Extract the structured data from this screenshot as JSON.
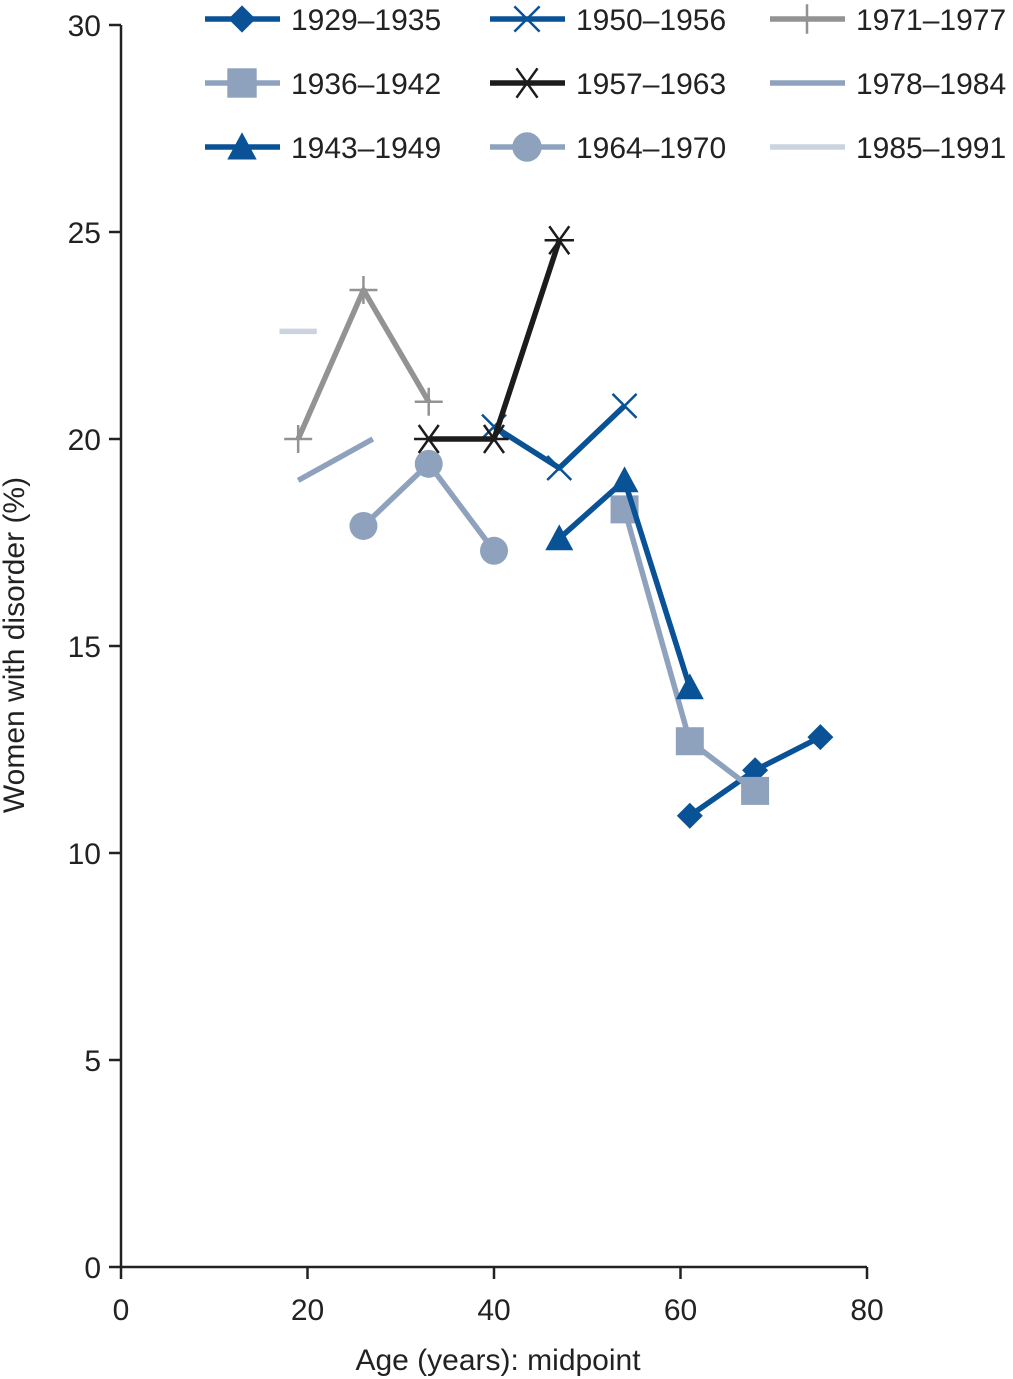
{
  "chart_data": {
    "type": "line",
    "title": "",
    "xlabel": "Age (years): midpoint",
    "ylabel": "Women with disorder (%)",
    "xlim": [
      0,
      80
    ],
    "ylim": [
      0,
      30
    ],
    "x_ticks": [
      0,
      20,
      40,
      60,
      80
    ],
    "y_ticks": [
      0,
      5,
      10,
      15,
      20,
      25,
      30
    ],
    "grid": false,
    "legend_position": "top",
    "series": [
      {
        "name": "1929–1935",
        "color": "#0a5296",
        "marker": "diamond",
        "points": [
          [
            61,
            10.9
          ],
          [
            68,
            12.0
          ],
          [
            75,
            12.8
          ]
        ]
      },
      {
        "name": "1936–1942",
        "color": "#8fa2bd",
        "marker": "square",
        "points": [
          [
            54,
            18.3
          ],
          [
            61,
            12.7
          ],
          [
            68,
            11.5
          ]
        ]
      },
      {
        "name": "1943–1949",
        "color": "#0a5296",
        "marker": "triangle",
        "points": [
          [
            47,
            17.6
          ],
          [
            54,
            19.0
          ],
          [
            61,
            14.0
          ]
        ]
      },
      {
        "name": "1950–1956",
        "color": "#0a5296",
        "marker": "x",
        "points": [
          [
            40,
            20.3
          ],
          [
            47,
            19.3
          ],
          [
            54,
            20.8
          ]
        ]
      },
      {
        "name": "1957–1963",
        "color": "#1c1c1c",
        "marker": "asterisk",
        "points": [
          [
            33,
            20.0
          ],
          [
            40,
            20.0
          ],
          [
            47,
            24.8
          ]
        ]
      },
      {
        "name": "1964–1970",
        "color": "#8fa2bd",
        "marker": "circle",
        "points": [
          [
            26,
            17.9
          ],
          [
            33,
            19.4
          ],
          [
            40,
            17.3
          ]
        ]
      },
      {
        "name": "1971–1977",
        "color": "#939393",
        "marker": "plus",
        "points": [
          [
            19,
            20.0
          ],
          [
            26,
            23.6
          ],
          [
            33,
            20.9
          ]
        ]
      },
      {
        "name": "1978–1984",
        "color": "#8fa2bd",
        "marker": "none",
        "points": [
          [
            19,
            19.0
          ],
          [
            27,
            20.0
          ]
        ]
      },
      {
        "name": "1985–1991",
        "color": "#cbd3df",
        "marker": "none",
        "points": [
          [
            17,
            22.6
          ],
          [
            21,
            22.6
          ]
        ]
      }
    ]
  }
}
